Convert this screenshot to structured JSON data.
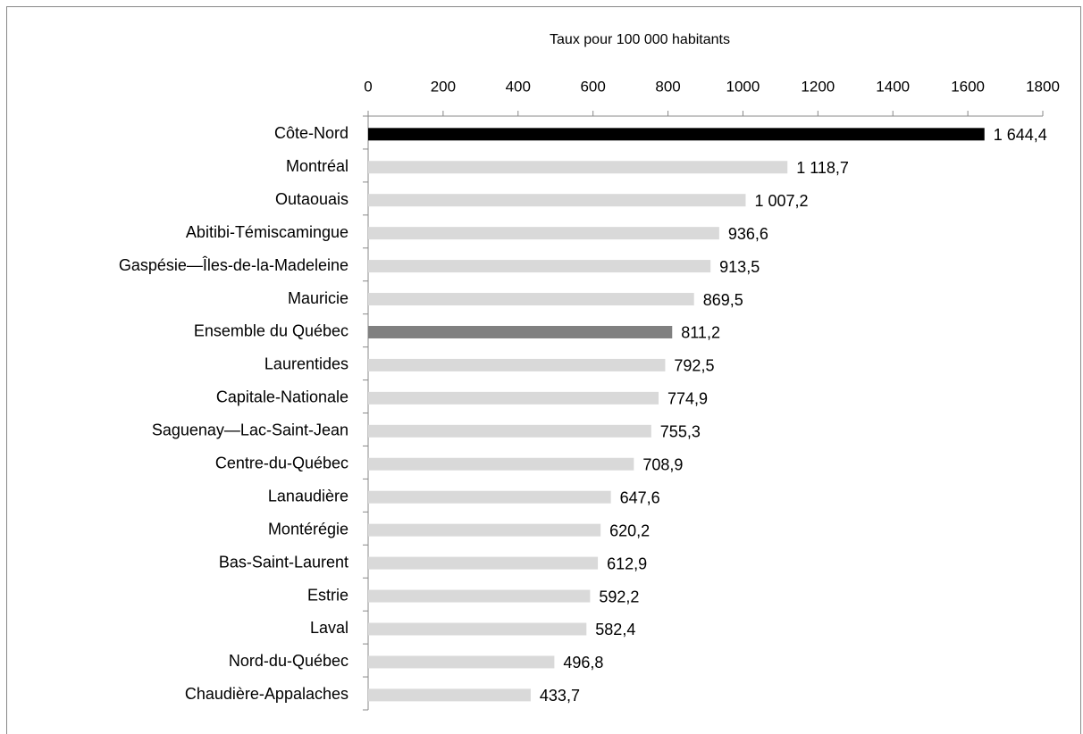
{
  "chart_data": {
    "type": "barh",
    "x_label": "Taux pour 100 000 habitants",
    "categories": [
      "Côte-Nord",
      "Montréal",
      "Outaouais",
      "Abitibi-Témiscamingue",
      "Gaspésie—Îles-de-la-Madeleine",
      "Mauricie",
      "Ensemble du Québec",
      "Laurentides",
      "Capitale-Nationale",
      "Saguenay—Lac-Saint-Jean",
      "Centre-du-Québec",
      "Lanaudière",
      "Montérégie",
      "Bas-Saint-Laurent",
      "Estrie",
      "Laval",
      "Nord-du-Québec",
      "Chaudière-Appalaches"
    ],
    "values": [
      1644.4,
      1118.7,
      1007.2,
      936.6,
      913.5,
      869.5,
      811.2,
      792.5,
      774.9,
      755.3,
      708.9,
      647.6,
      620.2,
      612.9,
      592.2,
      582.4,
      496.8,
      433.7
    ],
    "value_labels": [
      "1 644,4",
      "1 118,7",
      "1 007,2",
      "936,6",
      "913,5",
      "869,5",
      "811,2",
      "792,5",
      "774,9",
      "755,3",
      "708,9",
      "647,6",
      "620,2",
      "612,9",
      "592,2",
      "582,4",
      "496,8",
      "433,7"
    ],
    "colors": [
      "#000000",
      "#d9d9d9",
      "#d9d9d9",
      "#d9d9d9",
      "#d9d9d9",
      "#d9d9d9",
      "#808080",
      "#d9d9d9",
      "#d9d9d9",
      "#d9d9d9",
      "#d9d9d9",
      "#d9d9d9",
      "#d9d9d9",
      "#d9d9d9",
      "#d9d9d9",
      "#d9d9d9",
      "#d9d9d9",
      "#d9d9d9"
    ],
    "xlim": [
      0,
      1800
    ],
    "xticks": [
      0,
      200,
      400,
      600,
      800,
      1000,
      1200,
      1400,
      1600,
      1800
    ],
    "grid": false
  }
}
